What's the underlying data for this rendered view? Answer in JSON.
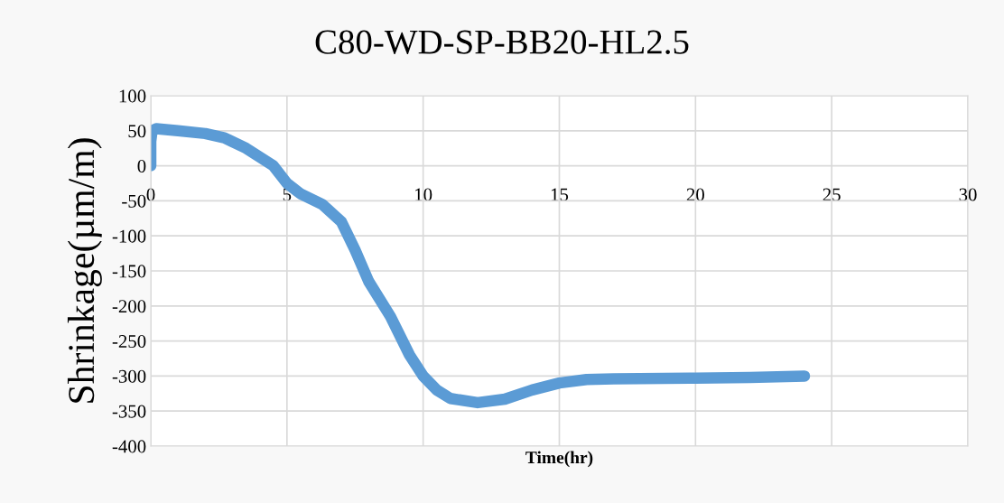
{
  "chart_data": {
    "type": "line",
    "title": "C80-WD-SP-BB20-HL2.5",
    "xlabel": "Time(hr)",
    "ylabel": "Shrinkage(µm/m)",
    "series": [
      {
        "color": "#5b9bd5",
        "x": [
          0,
          0,
          0,
          0.05,
          0.2,
          1,
          2,
          2.7,
          3.5,
          4.5,
          5,
          5.5,
          6.3,
          7,
          7.5,
          8,
          8.8,
          9.5,
          10,
          10.5,
          11,
          12,
          13,
          14,
          15,
          16,
          17,
          20,
          22,
          24
        ],
        "values": [
          0,
          10,
          35,
          50,
          53,
          50,
          46,
          40,
          25,
          0,
          -25,
          -40,
          -55,
          -80,
          -120,
          -165,
          -215,
          -270,
          -300,
          -320,
          -332,
          -338,
          -333,
          -320,
          -310,
          -305,
          -304,
          -303,
          -302,
          -300
        ]
      }
    ],
    "xlim": [
      0,
      30
    ],
    "xticks": [
      0,
      5,
      10,
      15,
      20,
      25,
      30
    ],
    "ylim": [
      -400,
      100
    ],
    "yticks": [
      -400,
      -350,
      -300,
      -250,
      -200,
      -150,
      -100,
      -50,
      0,
      50,
      100
    ],
    "grid": true,
    "line_style": "solid"
  }
}
